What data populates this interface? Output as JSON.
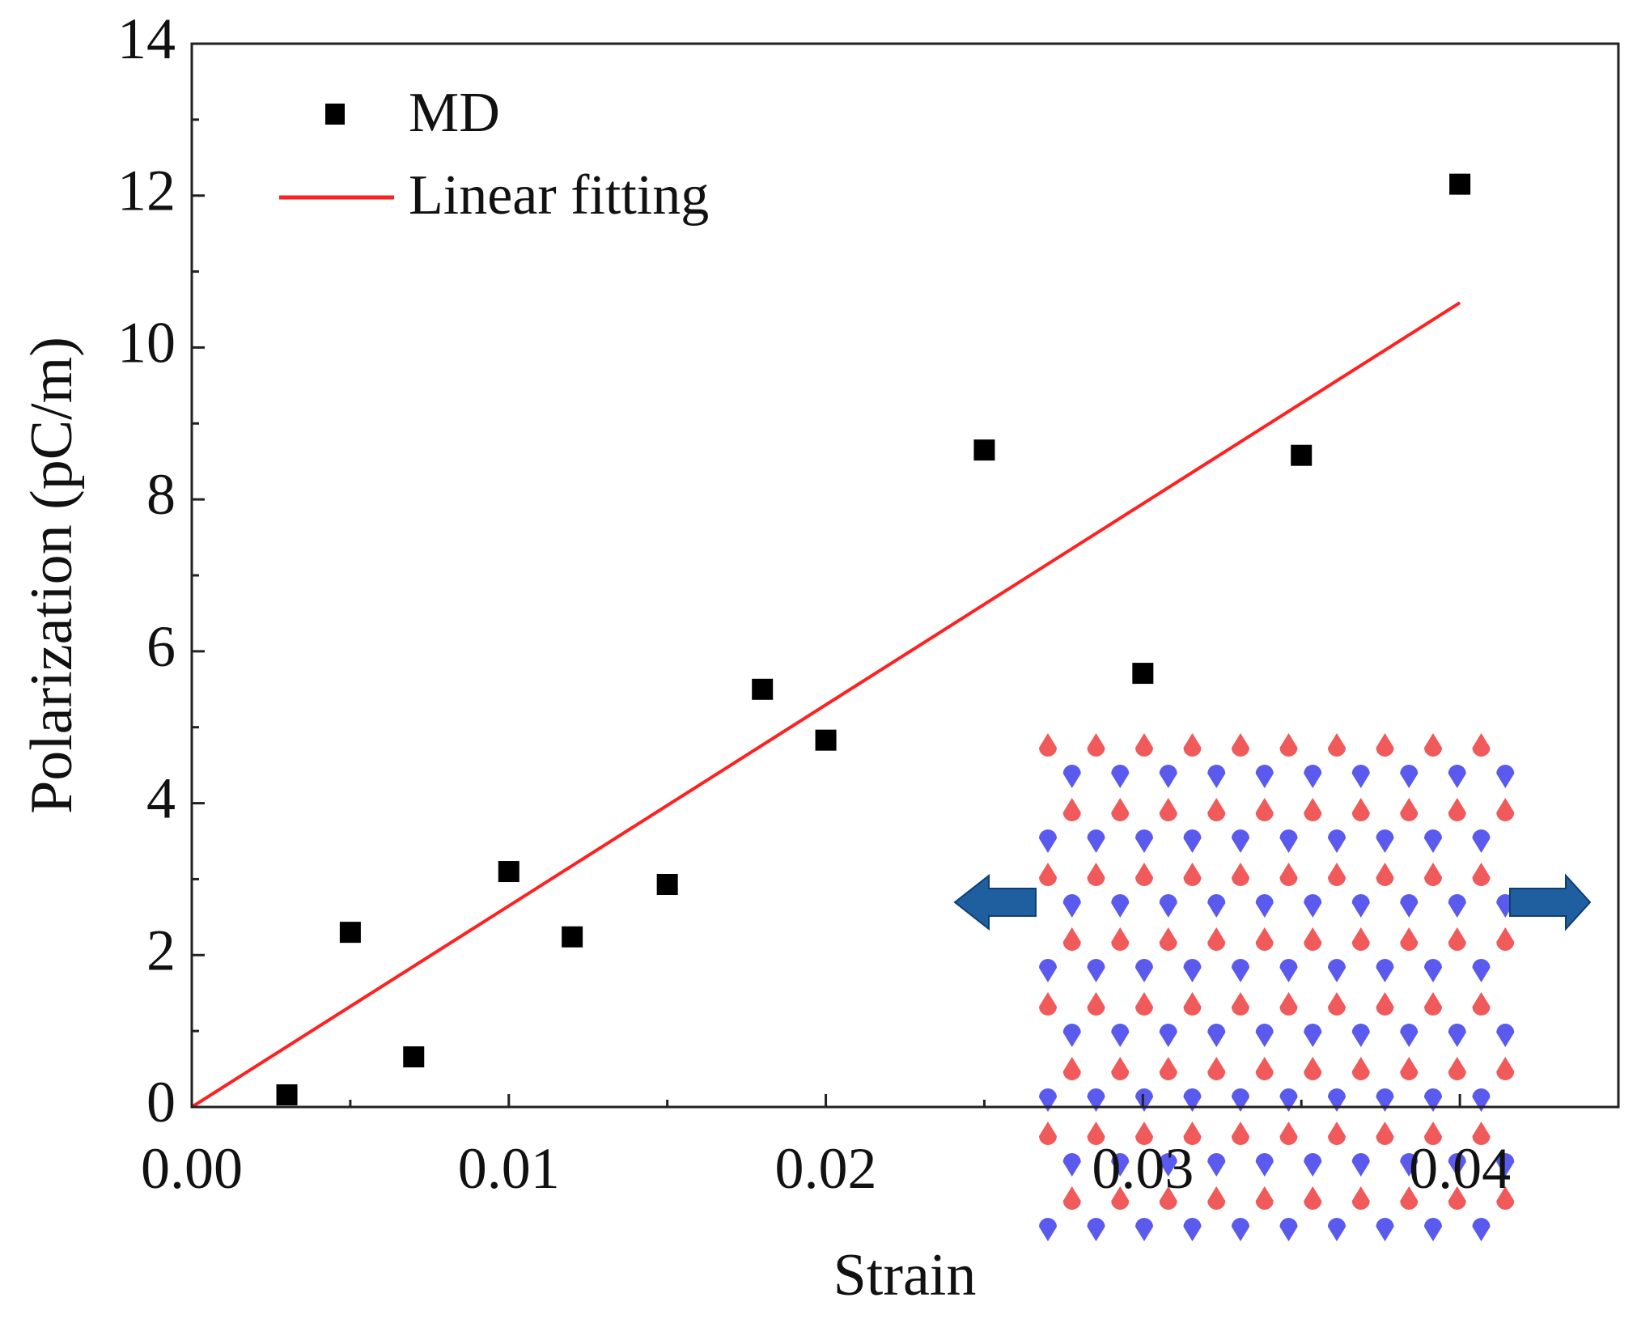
{
  "chart_data": {
    "type": "scatter",
    "title": "",
    "xlabel": "Strain",
    "ylabel": "Polarization (pC/m)",
    "xlim": [
      0,
      0.045
    ],
    "ylim": [
      0,
      14
    ],
    "xticks": [
      0.0,
      0.01,
      0.02,
      0.03,
      0.04
    ],
    "xtick_labels": [
      "0.00",
      "0.01",
      "0.02",
      "0.03",
      "0.04"
    ],
    "yticks": [
      0,
      2,
      4,
      6,
      8,
      10,
      12,
      14
    ],
    "ytick_labels": [
      "0",
      "2",
      "4",
      "6",
      "8",
      "10",
      "12",
      "14"
    ],
    "grid": false,
    "legend_position": "top-left",
    "series": [
      {
        "name": "MD",
        "kind": "scatter",
        "marker": "square",
        "color": "#000000",
        "x": [
          0.003,
          0.005,
          0.007,
          0.01,
          0.012,
          0.015,
          0.018,
          0.02,
          0.025,
          0.03,
          0.035,
          0.04
        ],
        "y": [
          0.16,
          2.3,
          0.66,
          3.1,
          2.24,
          2.93,
          5.5,
          4.83,
          8.65,
          5.71,
          8.58,
          12.15
        ]
      },
      {
        "name": "Linear fitting",
        "kind": "line",
        "color": "#ff2020",
        "x": [
          0,
          0.04
        ],
        "y": [
          0,
          10.59
        ]
      }
    ],
    "inset": {
      "description_colors": {
        "atom_a": "#f05a5a",
        "atom_b": "#5a5aee",
        "arrow": "#1f5fa0"
      }
    }
  }
}
